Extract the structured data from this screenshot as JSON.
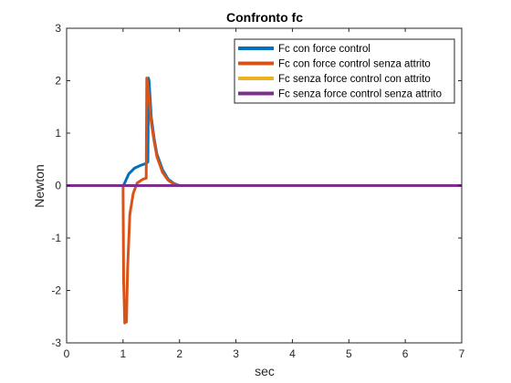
{
  "chart_data": {
    "type": "line",
    "title": "Confronto fc",
    "xlabel": "sec",
    "ylabel": "Newton",
    "xlim": [
      0,
      7
    ],
    "ylim": [
      -3,
      3
    ],
    "xticks": [
      "0",
      "1",
      "2",
      "3",
      "4",
      "5",
      "6",
      "7"
    ],
    "yticks": [
      "-3",
      "-2",
      "-1",
      "0",
      "1",
      "2",
      "3"
    ],
    "grid": false,
    "legend_position": "top-right",
    "series": [
      {
        "name": "Fc con force control",
        "color": "#0072BD",
        "x": [
          0,
          1.0,
          1.02,
          1.05,
          1.1,
          1.2,
          1.3,
          1.35,
          1.4,
          1.44,
          1.45,
          1.46,
          1.5,
          1.55,
          1.6,
          1.7,
          1.8,
          1.9,
          2.0,
          7.0
        ],
        "y": [
          0,
          0,
          0.03,
          0.1,
          0.22,
          0.33,
          0.38,
          0.4,
          0.42,
          0.45,
          2.05,
          2.0,
          1.3,
          0.9,
          0.6,
          0.3,
          0.12,
          0.04,
          0.0,
          0.0
        ]
      },
      {
        "name": "Fc con force control senza attrito",
        "color": "#D95319",
        "x": [
          0,
          1.0,
          1.01,
          1.03,
          1.06,
          1.08,
          1.12,
          1.18,
          1.25,
          1.35,
          1.41,
          1.42,
          1.45,
          1.5,
          1.55,
          1.6,
          1.7,
          1.8,
          1.9,
          2.0,
          7.0
        ],
        "y": [
          0,
          0,
          -1.8,
          -2.62,
          -2.6,
          -1.6,
          -0.55,
          -0.15,
          0.05,
          0.12,
          0.14,
          2.05,
          1.8,
          1.2,
          0.85,
          0.55,
          0.25,
          0.1,
          0.03,
          0.0,
          0.0
        ]
      },
      {
        "name": "Fc senza force control con attrito",
        "color": "#EDB120",
        "x": [
          0,
          7
        ],
        "y": [
          0,
          0
        ]
      },
      {
        "name": "Fc senza force control senza attrito",
        "color": "#7E2F8E",
        "x": [
          0,
          7
        ],
        "y": [
          0,
          0
        ]
      }
    ]
  }
}
